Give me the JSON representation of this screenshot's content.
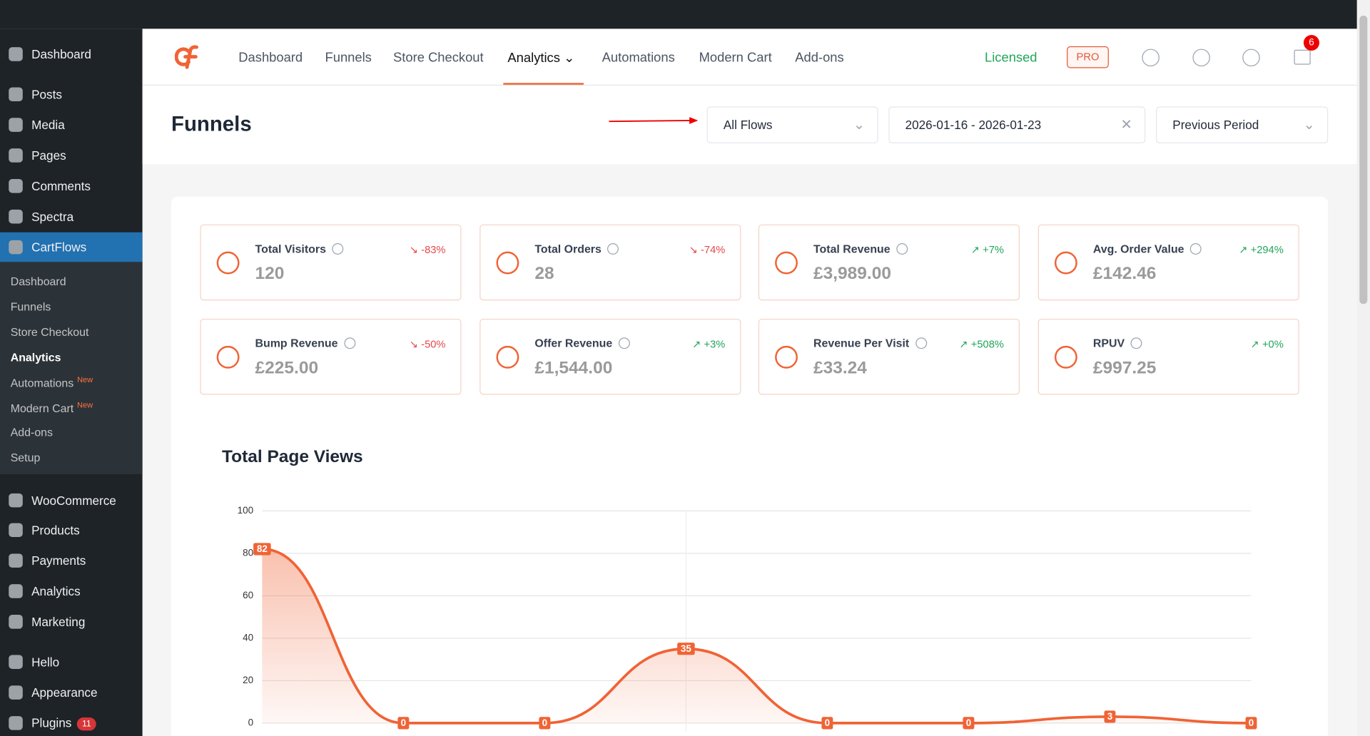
{
  "sidebar": {
    "menu_top": [
      {
        "label": "Dashboard"
      },
      {
        "label": "Posts"
      },
      {
        "label": "Media"
      },
      {
        "label": "Pages"
      },
      {
        "label": "Comments"
      },
      {
        "label": "Spectra"
      },
      {
        "label": "CartFlows"
      }
    ],
    "submenu": [
      {
        "label": "Dashboard"
      },
      {
        "label": "Funnels"
      },
      {
        "label": "Store Checkout"
      },
      {
        "label": "Analytics"
      },
      {
        "label": "Automations",
        "badge": "New"
      },
      {
        "label": "Modern Cart",
        "badge": "New"
      },
      {
        "label": "Add-ons"
      },
      {
        "label": "Setup"
      }
    ],
    "menu_mid": [
      {
        "label": "WooCommerce"
      },
      {
        "label": "Products"
      },
      {
        "label": "Payments"
      },
      {
        "label": "Analytics"
      },
      {
        "label": "Marketing"
      }
    ],
    "menu_bottom": [
      {
        "label": "Hello"
      },
      {
        "label": "Appearance"
      },
      {
        "label": "Plugins",
        "badge": "11"
      }
    ]
  },
  "nav": {
    "items": [
      "Dashboard",
      "Funnels",
      "Store Checkout",
      "Analytics",
      "Automations",
      "Modern Cart",
      "Add-ons"
    ],
    "status": "Licensed",
    "pro": "PRO",
    "notifications": "6"
  },
  "header": {
    "title": "Funnels",
    "filters": [
      "All Flows",
      "2026-01-16 - 2026-01-23",
      "Previous Period"
    ]
  },
  "stats": [
    {
      "label": "Total Visitors",
      "value": "120",
      "change": "-83%",
      "trend": "down"
    },
    {
      "label": "Total Orders",
      "value": "28",
      "change": "-74%",
      "trend": "down"
    },
    {
      "label": "Total Revenue",
      "value": "£3,989.00",
      "change": "+7%",
      "trend": "up"
    },
    {
      "label": "Avg. Order Value",
      "value": "£142.46",
      "change": "+294%",
      "trend": "up"
    },
    {
      "label": "Bump Revenue",
      "value": "£225.00",
      "change": "-50%",
      "trend": "down"
    },
    {
      "label": "Offer Revenue",
      "value": "£1,544.00",
      "change": "+3%",
      "trend": "up"
    },
    {
      "label": "Revenue Per Visit",
      "value": "£33.24",
      "change": "+508%",
      "trend": "up"
    },
    {
      "label": "RPUV",
      "value": "£997.25",
      "change": "+0%",
      "trend": "up"
    }
  ],
  "chart_data": {
    "type": "line",
    "title": "Total Page Views",
    "categories": [
      null,
      null,
      null,
      null,
      null,
      null,
      null,
      null
    ],
    "values": [
      82,
      0,
      0,
      35,
      0,
      0,
      3,
      0
    ],
    "ylim": [
      0,
      100
    ],
    "yticks": [
      0,
      20,
      40,
      60,
      80,
      100
    ],
    "color": "#f06335",
    "grid": true
  }
}
